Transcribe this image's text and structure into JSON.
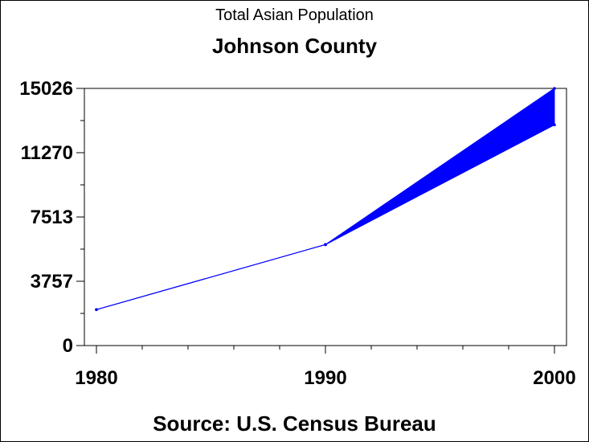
{
  "chart_data": {
    "type": "area",
    "title": "Total Asian Population",
    "subtitle": "Johnson County",
    "footnote": "Source: U.S. Census Bureau",
    "x": [
      1980,
      1990,
      2000
    ],
    "x_tick_labels": [
      "1980",
      "1990",
      "2000"
    ],
    "y_tick_labels": [
      "0",
      "3757",
      "7513",
      "11270",
      "15026"
    ],
    "y_ticks": [
      0,
      3757,
      7513,
      11270,
      15026
    ],
    "ylim": [
      0,
      15026
    ],
    "xlim": [
      1980,
      2000
    ],
    "series": [
      {
        "values": [
          2100,
          5900,
          15026
        ]
      },
      {
        "values": [
          2100,
          5900,
          12900
        ]
      }
    ],
    "fill_between_series": true,
    "grid": false,
    "colors": {
      "series": "#0000ff",
      "axis": "#000000"
    }
  }
}
